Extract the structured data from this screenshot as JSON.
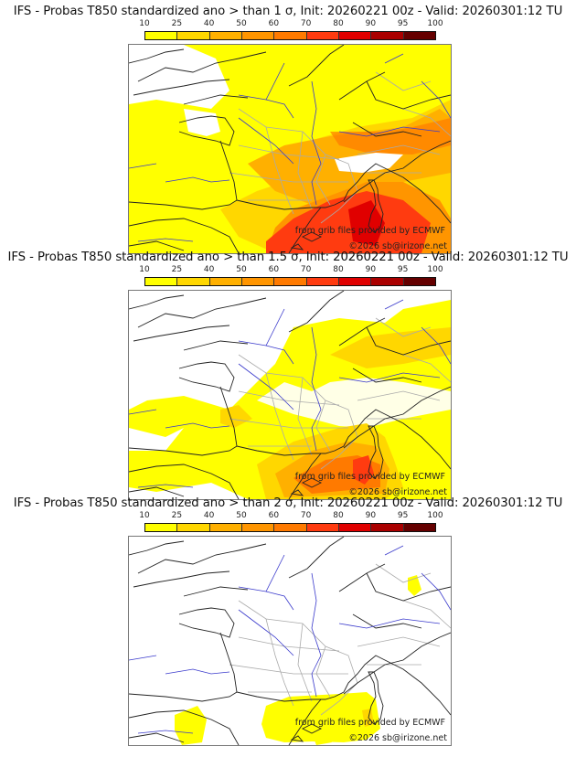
{
  "legend": {
    "ticks": [
      "10",
      "25",
      "40",
      "50",
      "60",
      "70",
      "80",
      "90",
      "95",
      "100"
    ],
    "colors": [
      "#ffff00",
      "#ffd700",
      "#ffb000",
      "#ff9500",
      "#ff7a00",
      "#ff3b10",
      "#e00000",
      "#aa0000",
      "#650000"
    ]
  },
  "panels": [
    {
      "title": "IFS - Probas T850  standardized ano > than 1 σ, Init: 20260221 00z - Valid: 20260301:12 TU",
      "threshold_sigma": "1",
      "credit_source": "from grib files provided by ECMWF",
      "credit_copyright": "©2026 sb@irizone.net"
    },
    {
      "title": "IFS - Probas T850  standardized ano > than 1.5 σ, Init: 20260221 00z - Valid: 20260301:12 TU",
      "threshold_sigma": "1.5",
      "credit_source": "from grib files provided by ECMWF",
      "credit_copyright": "©2026 sb@irizone.net"
    },
    {
      "title": "IFS - Probas T850  standardized ano > than 2 σ, Init: 20260221 00z - Valid: 20260301:12 TU",
      "threshold_sigma": "2",
      "credit_source": "from grib files provided by ECMWF",
      "credit_copyright": "©2026 sb@irizone.net"
    }
  ]
}
